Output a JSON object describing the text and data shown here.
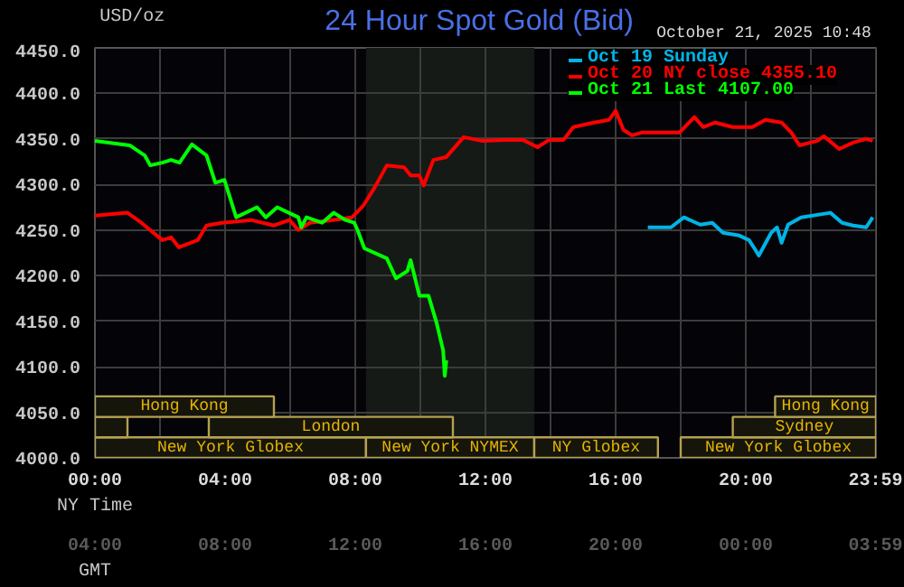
{
  "chart_data": {
    "type": "line",
    "title": "24 Hour Spot Gold (Bid)",
    "subtitle": "October 21, 2025 10:48",
    "ylabel": "USD/oz",
    "xlabel": "NY Time",
    "x2label": "GMT",
    "xlim": [
      0,
      24
    ],
    "ylim": [
      4000,
      4450
    ],
    "xticks": [
      {
        "value": 0,
        "label": "00:00"
      },
      {
        "value": 2,
        "label": null
      },
      {
        "value": 4,
        "label": "04:00"
      },
      {
        "value": 6,
        "label": null
      },
      {
        "value": 8,
        "label": "08:00"
      },
      {
        "value": 10,
        "label": null
      },
      {
        "value": 12,
        "label": "12:00"
      },
      {
        "value": 14,
        "label": null
      },
      {
        "value": 16,
        "label": "16:00"
      },
      {
        "value": 18,
        "label": null
      },
      {
        "value": 20,
        "label": "20:00"
      },
      {
        "value": 22,
        "label": null
      },
      {
        "value": 23.983,
        "label": "23:59"
      }
    ],
    "x2lim": [
      "2025-10-21T04:00",
      "2025-10-22T04:00"
    ],
    "x2ticks": [
      {
        "value": "2025-10-21T04:00",
        "label": "04:00"
      },
      {
        "value": "2025-10-21T08:00",
        "label": "08:00"
      },
      {
        "value": "2025-10-21T12:00",
        "label": "12:00"
      },
      {
        "value": "2025-10-21T16:00",
        "label": "16:00"
      },
      {
        "value": "2025-10-21T20:00",
        "label": "20:00"
      },
      {
        "value": "2025-10-22T00:00",
        "label": "00:00"
      },
      {
        "value": "2025-10-22T03:59",
        "label": "03:59"
      }
    ],
    "yticks": [
      {
        "value": 4000,
        "label": "4000.0"
      },
      {
        "value": 4050,
        "label": "4050.0"
      },
      {
        "value": 4100,
        "label": "4100.0"
      },
      {
        "value": 4150,
        "label": "4150.0"
      },
      {
        "value": 4200,
        "label": "4200.0"
      },
      {
        "value": 4250,
        "label": "4250.0"
      },
      {
        "value": 4300,
        "label": "4300.0"
      },
      {
        "value": 4350,
        "label": "4350.0"
      },
      {
        "value": 4400,
        "label": "4400.0"
      },
      {
        "value": 4450,
        "label": "4450.0"
      }
    ],
    "grid": true,
    "legend": "top right",
    "line_style": "solid",
    "marker": "none",
    "bands": [
      {
        "axis": "x",
        "from": 8.33,
        "to": 13.5,
        "color": "#161a16"
      },
      {
        "axis": "x",
        "from": 0,
        "to": 8.33,
        "label": "New York Globex",
        "color": "#15150c"
      },
      {
        "axis": "x",
        "from": 8.33,
        "to": 13.5,
        "label": "New York NYMEX",
        "color": "#15150c"
      },
      {
        "axis": "x",
        "from": 13.5,
        "to": 17.3,
        "label": "NY Globex",
        "color": "#15150c"
      },
      {
        "axis": "x",
        "from": 18.0,
        "to": 24,
        "label": "New York Globex",
        "color": "#15150c"
      },
      {
        "axis": "x",
        "from": 3.5,
        "to": 11.0,
        "label": "London",
        "color": "#15150c"
      },
      {
        "axis": "x",
        "from": 0,
        "to": 1.0,
        "label": null,
        "color": "#15150c"
      },
      {
        "axis": "x",
        "from": 19.6,
        "to": 24,
        "label": "Sydney",
        "color": "#15150c"
      },
      {
        "axis": "x",
        "from": 0,
        "to": 5.5,
        "label": "Hong Kong",
        "color": "#15150c"
      },
      {
        "axis": "x",
        "from": 20.9,
        "to": 24,
        "label": "Hong Kong",
        "color": "#15150c"
      }
    ],
    "series": [
      {
        "name": "Oct 19 Sunday",
        "color": "#00b4e6",
        "x": [
          16.99,
          17.7,
          18.1,
          18.6,
          18.97,
          19.3,
          19.8,
          20.1,
          20.3,
          20.4,
          20.78,
          20.96,
          21.1,
          21.3,
          21.7,
          22.6,
          22.96,
          23.3,
          23.7,
          23.9
        ],
        "values": [
          4253,
          4253,
          4264,
          4256,
          4258,
          4247,
          4244,
          4239,
          4228,
          4222,
          4247,
          4253,
          4236,
          4256,
          4264,
          4269,
          4258,
          4255,
          4253,
          4264
        ]
      },
      {
        "name": "Oct 20 NY close 4355.10",
        "color": "#ff0000",
        "x": [
          0,
          1,
          1.43,
          2.07,
          2.34,
          2.58,
          3.16,
          3.43,
          3.9,
          4.8,
          5.5,
          5.98,
          6.25,
          6.6,
          7.3,
          7.9,
          8.25,
          8.6,
          8.97,
          9.5,
          9.7,
          9.97,
          10.1,
          10.4,
          10.79,
          11.33,
          11.88,
          12.6,
          13.15,
          13.6,
          13.96,
          14.4,
          14.7,
          15.33,
          15.8,
          16.0,
          16.24,
          16.5,
          16.8,
          17.96,
          18.42,
          18.69,
          19.06,
          19.6,
          20.2,
          20.6,
          21.1,
          21.4,
          21.65,
          22.2,
          22.4,
          22.87,
          23.3,
          23.7,
          23.9
        ],
        "values": [
          4266,
          4269,
          4258,
          4239,
          4242,
          4231,
          4239,
          4255,
          4258,
          4261,
          4255,
          4261,
          4250,
          4258,
          4261,
          4264,
          4277,
          4297,
          4321,
          4319,
          4310,
          4310,
          4299,
          4327,
          4330,
          4352,
          4348,
          4349,
          4349,
          4341,
          4349,
          4349,
          4363,
          4368,
          4371,
          4381,
          4360,
          4354,
          4357,
          4357,
          4374,
          4363,
          4368,
          4363,
          4363,
          4371,
          4368,
          4357,
          4343,
          4348,
          4353,
          4339,
          4346,
          4350,
          4348
        ]
      },
      {
        "name": "Oct 21 Last 4107.00",
        "color": "#00ff00",
        "x": [
          0,
          1.07,
          1.53,
          1.7,
          2.07,
          2.34,
          2.6,
          2.98,
          3.43,
          3.7,
          3.98,
          4.34,
          4.98,
          5.25,
          5.6,
          6.25,
          6.34,
          6.5,
          6.98,
          7.34,
          7.7,
          7.97,
          8.07,
          8.28,
          8.97,
          9.25,
          9.6,
          9.7,
          9.97,
          10.25,
          10.5,
          10.7,
          10.75,
          10.8
        ],
        "values": [
          4348,
          4343,
          4332,
          4321,
          4324,
          4327,
          4324,
          4344,
          4332,
          4302,
          4305,
          4264,
          4275,
          4264,
          4275,
          4264,
          4253,
          4264,
          4258,
          4269,
          4261,
          4258,
          4250,
          4230,
          4219,
          4197,
          4205,
          4217,
          4178,
          4178,
          4148,
          4118,
          4090,
          4107
        ]
      }
    ]
  }
}
